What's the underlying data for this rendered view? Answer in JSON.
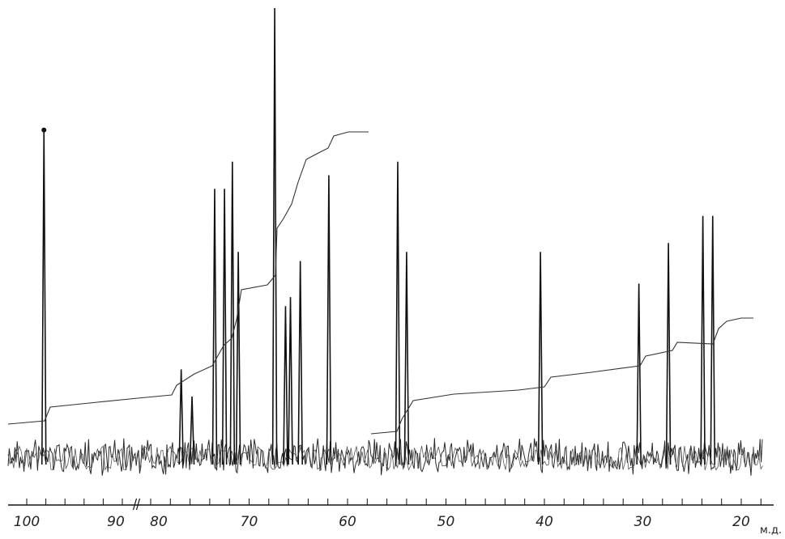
{
  "chart_data": {
    "type": "line",
    "title": "",
    "xlabel": "м.д.",
    "ylabel": "",
    "x_reversed": true,
    "axis_break": {
      "between": [
        "90",
        "80"
      ],
      "mark": "//"
    },
    "tick_labels": [
      "100",
      "90",
      "80",
      "70",
      "60",
      "50",
      "40",
      "30",
      "20"
    ],
    "unit_label": "м.д.",
    "grid": false,
    "baseline_noise": true,
    "peaks_ppm_relative_height": [
      {
        "ppm": 98.2,
        "height": 0.73
      },
      {
        "ppm": 76.9,
        "height": 0.2
      },
      {
        "ppm": 75.8,
        "height": 0.14
      },
      {
        "ppm": 73.5,
        "height": 0.6
      },
      {
        "ppm": 72.5,
        "height": 0.6
      },
      {
        "ppm": 71.7,
        "height": 0.66
      },
      {
        "ppm": 71.1,
        "height": 0.46
      },
      {
        "ppm": 67.4,
        "height": 1.0
      },
      {
        "ppm": 66.3,
        "height": 0.34
      },
      {
        "ppm": 65.8,
        "height": 0.36
      },
      {
        "ppm": 64.8,
        "height": 0.44
      },
      {
        "ppm": 61.9,
        "height": 0.63
      },
      {
        "ppm": 54.9,
        "height": 0.66
      },
      {
        "ppm": 54.0,
        "height": 0.46
      },
      {
        "ppm": 40.4,
        "height": 0.46
      },
      {
        "ppm": 30.4,
        "height": 0.39
      },
      {
        "ppm": 27.4,
        "height": 0.48
      },
      {
        "ppm": 23.9,
        "height": 0.54
      },
      {
        "ppm": 22.9,
        "height": 0.54
      }
    ]
  }
}
